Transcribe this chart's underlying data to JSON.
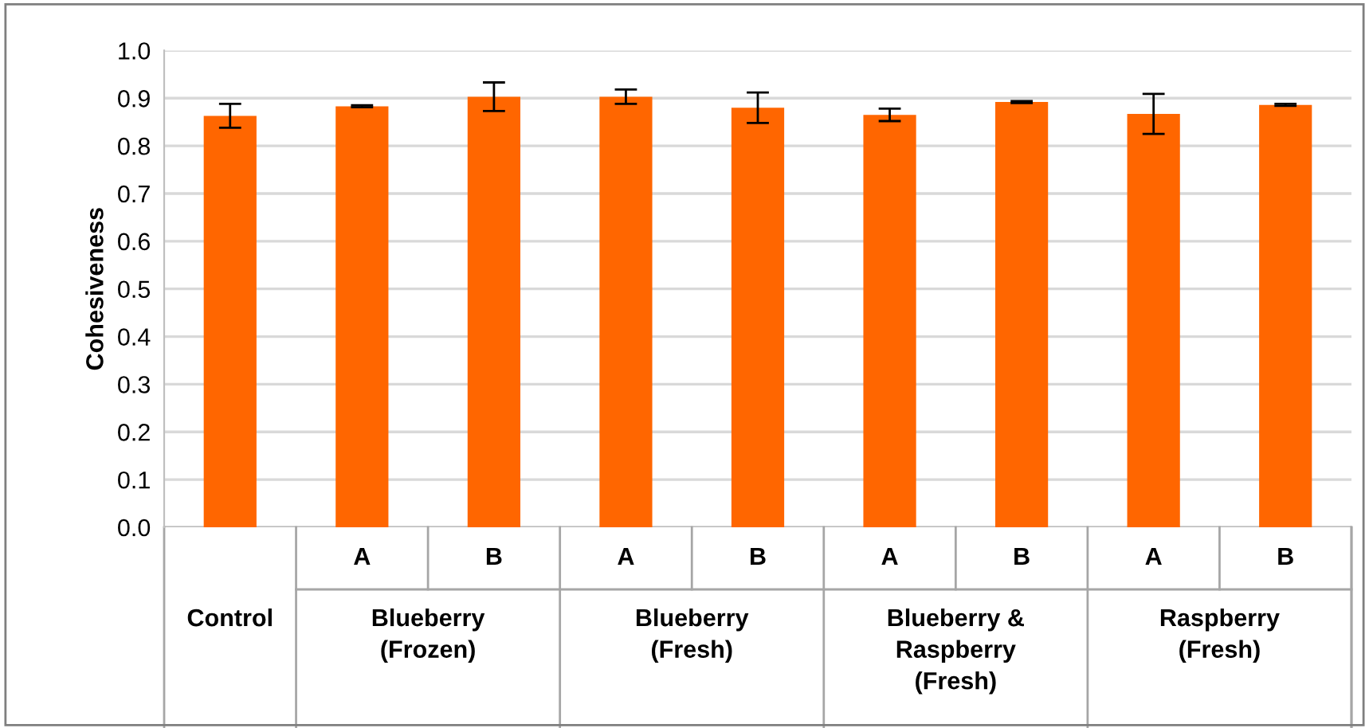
{
  "chart_data": {
    "type": "bar",
    "ylabel": "Cohesiveness",
    "categories": [
      null,
      "A",
      "B",
      "A",
      "B",
      "A",
      "B",
      "A",
      "B"
    ],
    "annotations": [
      "Control",
      "Blueberry\n(Frozen)",
      "Blueberry\n(Fresh)",
      "Blueberry &\nRaspberry\n(Fresh)",
      "Raspberry\n(Fresh)"
    ],
    "values": [
      0.863,
      0.883,
      0.903,
      0.903,
      0.88,
      0.865,
      0.892,
      0.867,
      0.886
    ],
    "errors": [
      0.025,
      0.002,
      0.03,
      0.015,
      0.032,
      0.013,
      0.002,
      0.042,
      0.002
    ],
    "color": "#ff6600",
    "ylim": [
      0.0,
      1.0
    ],
    "yticks": [
      {
        "value": 0,
        "label": "0.0"
      },
      0.1,
      0.2,
      0.3,
      0.4,
      0.5,
      0.6,
      0.7,
      0.8,
      0.9,
      {
        "value": 1,
        "label": "1.0"
      }
    ],
    "grid": "y"
  }
}
